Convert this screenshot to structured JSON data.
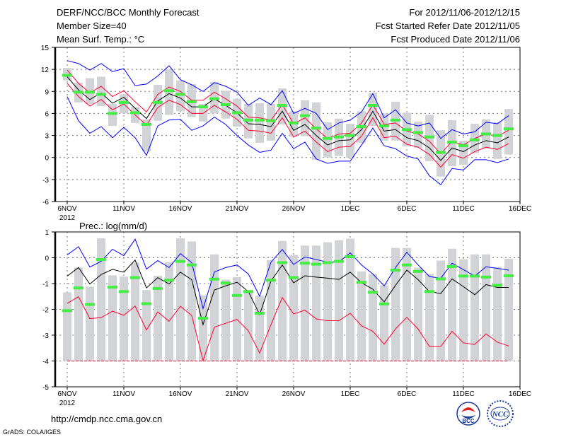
{
  "header": {
    "title": "DERF/NCC/BCC Monthly Forecast",
    "member_size": "Member Size=40",
    "variable": "Mean Surf. Temp.: °C",
    "period": "For 2012/11/06-2012/12/15",
    "started": "Fcst Started Refer Date 2012/11/05",
    "produced": "Fcst Produced Date 2012/11/06"
  },
  "footer": {
    "url": "http://cmdp.ncc.cma.gov.cn",
    "credit": "GrADS: COLA/IGES",
    "logo_bcc": "BCC",
    "logo_ncc": "NCC"
  },
  "colors": {
    "max_min": "#0000ff",
    "spread": "#ff0033",
    "mean": "#000000",
    "obs": "#44ee44",
    "box": "#d2d3d7"
  },
  "chart_data": [
    {
      "type": "line",
      "title": "Mean Surf. Temp.: °C",
      "ylim": [
        -6,
        15
      ],
      "yticks": [
        "15",
        "12",
        "9",
        "6",
        "3",
        "0",
        "-3",
        "-6"
      ],
      "xticks": [
        "6NOV",
        "11NOV",
        "16NOV",
        "21NOV",
        "26NOV",
        "1DEC",
        "6DEC",
        "11DEC",
        "16DEC"
      ],
      "xyear": "2012",
      "grid": true,
      "x_start": "2012-11-06",
      "days": 40,
      "series": [
        {
          "name": "max",
          "color": "#0000ff",
          "values": [
            13.2,
            12.8,
            11.9,
            12.8,
            11.7,
            12.1,
            9.8,
            10.0,
            11.1,
            12.5,
            10.6,
            9.9,
            9.0,
            10.2,
            9.7,
            8.9,
            7.1,
            8.1,
            7.2,
            9.1,
            6.0,
            6.7,
            6.0,
            3.8,
            4.7,
            5.1,
            6.2,
            8.7,
            5.4,
            6.5,
            4.7,
            4.3,
            4.7,
            2.6,
            3.8,
            3.2,
            3.5,
            4.8,
            4.6,
            5.7
          ]
        },
        {
          "name": "upper",
          "color": "#ff0033",
          "values": [
            11.9,
            10.1,
            8.8,
            9.7,
            8.3,
            9.1,
            7.6,
            6.2,
            8.6,
            9.6,
            9.0,
            7.8,
            7.8,
            8.9,
            8.0,
            7.0,
            5.5,
            5.4,
            5.1,
            7.2,
            4.6,
            5.4,
            3.9,
            2.6,
            3.2,
            3.3,
            4.7,
            7.2,
            4.5,
            4.7,
            3.6,
            3.2,
            2.2,
            0.5,
            2.2,
            1.7,
            2.6,
            3.2,
            2.9,
            3.7
          ]
        },
        {
          "name": "mean",
          "color": "#000000",
          "values": [
            11.0,
            9.2,
            7.9,
            8.8,
            7.4,
            8.2,
            6.7,
            5.3,
            7.7,
            8.7,
            8.1,
            6.9,
            6.9,
            8.0,
            7.1,
            6.1,
            4.6,
            4.5,
            4.2,
            6.3,
            3.7,
            4.5,
            3.0,
            1.7,
            2.3,
            2.4,
            3.8,
            6.3,
            3.6,
            3.8,
            2.7,
            2.3,
            1.3,
            -0.4,
            1.3,
            0.8,
            1.7,
            2.3,
            2.0,
            2.8
          ]
        },
        {
          "name": "lower",
          "color": "#ff0033",
          "values": [
            10.1,
            8.3,
            7.0,
            7.9,
            6.5,
            7.3,
            5.8,
            4.4,
            6.8,
            7.8,
            7.2,
            6.0,
            6.0,
            7.1,
            6.2,
            5.2,
            3.7,
            3.6,
            3.3,
            5.4,
            2.8,
            3.6,
            2.1,
            0.8,
            1.4,
            1.5,
            2.9,
            5.4,
            2.7,
            2.9,
            1.8,
            1.4,
            0.4,
            -1.3,
            0.4,
            -0.1,
            0.8,
            1.4,
            1.1,
            1.9
          ]
        },
        {
          "name": "min",
          "color": "#0000ff",
          "values": [
            8.3,
            5.0,
            3.3,
            4.2,
            2.7,
            4.1,
            2.7,
            0.3,
            4.3,
            5.1,
            5.2,
            3.7,
            4.3,
            5.5,
            4.5,
            3.0,
            1.7,
            0.7,
            1.0,
            3.3,
            1.2,
            2.1,
            -0.2,
            -0.8,
            -0.5,
            -0.5,
            1.7,
            4.0,
            1.6,
            1.2,
            0.2,
            -0.2,
            -2.5,
            -3.7,
            -1.5,
            -1.7,
            -0.3,
            -0.3,
            -0.7,
            -0.2
          ]
        }
      ],
      "box_high": [
        12.2,
        10.2,
        10.8,
        11.0,
        7.3,
        8.6,
        6.9,
        5.2,
        9.9,
        12.0,
        10.5,
        10.0,
        7.3,
        10.3,
        9.1,
        8.0,
        7.3,
        7.4,
        7.3,
        9.4,
        6.3,
        7.8,
        7.5,
        4.8,
        5.3,
        4.6,
        6.3,
        8.8,
        6.0,
        7.6,
        6.1,
        4.9,
        5.8,
        3.7,
        5.1,
        2.3,
        4.6,
        5.2,
        4.8,
        6.6
      ],
      "box_low": [
        10.5,
        7.5,
        7.3,
        7.0,
        4.3,
        6.0,
        4.7,
        0.8,
        5.0,
        5.8,
        6.3,
        5.5,
        4.9,
        6.0,
        5.3,
        4.2,
        2.6,
        2.0,
        2.3,
        4.5,
        2.8,
        2.9,
        -0.3,
        0.0,
        0.2,
        0.0,
        2.0,
        4.3,
        2.3,
        2.3,
        1.5,
        1.3,
        -0.5,
        -2.6,
        -1.2,
        -1.0,
        0.6,
        1.2,
        -0.2,
        0.4
      ],
      "obs": [
        11.2,
        8.9,
        8.9,
        8.6,
        6.0,
        7.5,
        6.1,
        4.5,
        7.5,
        9.1,
        8.6,
        7.6,
        6.9,
        8.0,
        7.2,
        6.1,
        5.1,
        5.1,
        5.0,
        7.1,
        4.7,
        5.7,
        4.0,
        2.6,
        2.8,
        3.0,
        4.2,
        7.1,
        4.3,
        5.1,
        3.8,
        3.4,
        2.8,
        0.7,
        2.1,
        1.6,
        2.4,
        3.2,
        3.0,
        3.9
      ]
    },
    {
      "type": "line",
      "title": "Prec.: log(mm/d)",
      "ylim": [
        -5,
        1
      ],
      "yticks": [
        "1",
        "0",
        "-1",
        "-2",
        "-3",
        "-4",
        "-5"
      ],
      "xticks": [
        "6NOV",
        "11NOV",
        "16NOV",
        "21NOV",
        "26NOV",
        "1DEC",
        "6DEC",
        "11DEC",
        "16DEC"
      ],
      "xyear": "2012",
      "grid": true,
      "x_start": "2012-11-06",
      "days": 40,
      "series": [
        {
          "name": "max",
          "color": "#0000ff",
          "values": [
            0.11,
            0.43,
            -0.36,
            -0.14,
            0.33,
            0.08,
            0.72,
            -0.44,
            -0.11,
            -0.38,
            0.16,
            -0.19,
            -1.97,
            -0.55,
            -0.38,
            -0.28,
            -0.63,
            -1.49,
            -0.17,
            0.32,
            -0.26,
            0.03,
            -0.07,
            -0.17,
            -0.16,
            0.19,
            -0.28,
            -0.63,
            -1.09,
            -0.38,
            0.21,
            -0.28,
            -0.73,
            -0.79,
            -0.21,
            -0.46,
            -0.71,
            -0.35,
            -0.41,
            -0.48
          ]
        },
        {
          "name": "mean",
          "color": "#000000",
          "values": [
            -0.71,
            -0.38,
            -1.02,
            -0.65,
            -0.45,
            -0.56,
            -0.09,
            -1.17,
            -0.77,
            -1.02,
            -0.56,
            -0.85,
            -2.59,
            -1.25,
            -1.09,
            -0.95,
            -1.31,
            -2.2,
            -0.9,
            -0.28,
            -0.97,
            -0.7,
            -0.75,
            -0.79,
            -0.84,
            -0.56,
            -0.97,
            -1.22,
            -1.71,
            -1.07,
            -0.48,
            -0.85,
            -1.31,
            -1.39,
            -0.82,
            -1.12,
            -1.43,
            -1.04,
            -1.15,
            -1.15
          ]
        },
        {
          "name": "upper_spread",
          "color": "#ff0033",
          "values": [
            -1.77,
            -1.51,
            -2.36,
            -2.32,
            -2.07,
            -2.23,
            -1.87,
            -2.8,
            -2.1,
            -2.46,
            -1.88,
            -2.24,
            -3.98,
            -2.69,
            -2.54,
            -2.39,
            -2.83,
            -3.69,
            -2.59,
            -1.54,
            -2.18,
            -2.03,
            -2.37,
            -2.44,
            -2.44,
            -2.15,
            -2.64,
            -2.85,
            -3.35,
            -2.76,
            -2.31,
            -2.76,
            -3.44,
            -3.44,
            -2.85,
            -3.3,
            -3.36,
            -2.95,
            -3.27,
            -3.42
          ]
        },
        {
          "name": "min",
          "color": "#ff0033",
          "values": [
            -4,
            -4,
            -4,
            -4,
            -4,
            -4,
            -4,
            -4,
            -4,
            -4,
            -4,
            -4,
            -4,
            -4,
            -4,
            -4,
            -4,
            -4,
            -4,
            -4,
            -4,
            -4,
            -4,
            -4,
            -4,
            -4,
            -4,
            -4,
            -4,
            -4,
            -4,
            -4,
            -4,
            -4,
            -4,
            -4,
            -4,
            -4,
            -4,
            -4
          ]
        }
      ],
      "box_high": [
        -1.34,
        -0.38,
        -1.12,
        0.75,
        -0.68,
        -0.73,
        -0.19,
        -1.25,
        -0.7,
        -0.17,
        0.75,
        0.63,
        -1.46,
        0.13,
        -0.85,
        -0.75,
        -1.25,
        -1.46,
        -0.09,
        0.65,
        0.11,
        0.47,
        0.47,
        0.6,
        0.68,
        0.74,
        -0.53,
        -0.63,
        -1.07,
        0.38,
        0.38,
        -0.38,
        -0.63,
        -0.11,
        0.35,
        -0.06,
        0.13,
        0.13,
        -0.36,
        -0.04
      ],
      "box_low": [
        -4,
        -4,
        -4,
        -4,
        -4,
        -4,
        -4,
        -4,
        -4,
        -4,
        -4,
        -4,
        -4,
        -4,
        -4,
        -4,
        -4,
        -4,
        -4,
        -4,
        -4,
        -4,
        -4,
        -4,
        -4,
        -4,
        -4,
        -4,
        -4,
        -4,
        -4,
        -4,
        -4,
        -4,
        -4,
        -4,
        -4,
        -4,
        -4,
        -4
      ],
      "obs": [
        -2.05,
        -1.17,
        -1.81,
        -0.07,
        -1.14,
        -1.31,
        -0.77,
        -1.78,
        -1.19,
        -0.87,
        -0.14,
        -0.28,
        -2.34,
        -0.83,
        -0.98,
        -1.46,
        -1.31,
        -2.15,
        -0.87,
        -0.19,
        -0.77,
        -0.21,
        -0.25,
        -0.19,
        -0.14,
        0.04,
        -0.95,
        -1.34,
        -1.79,
        -0.48,
        -0.28,
        -0.53,
        -1.31,
        -0.82,
        -0.34,
        -0.71,
        -0.71,
        -0.75,
        -1.07,
        -0.7
      ]
    }
  ]
}
